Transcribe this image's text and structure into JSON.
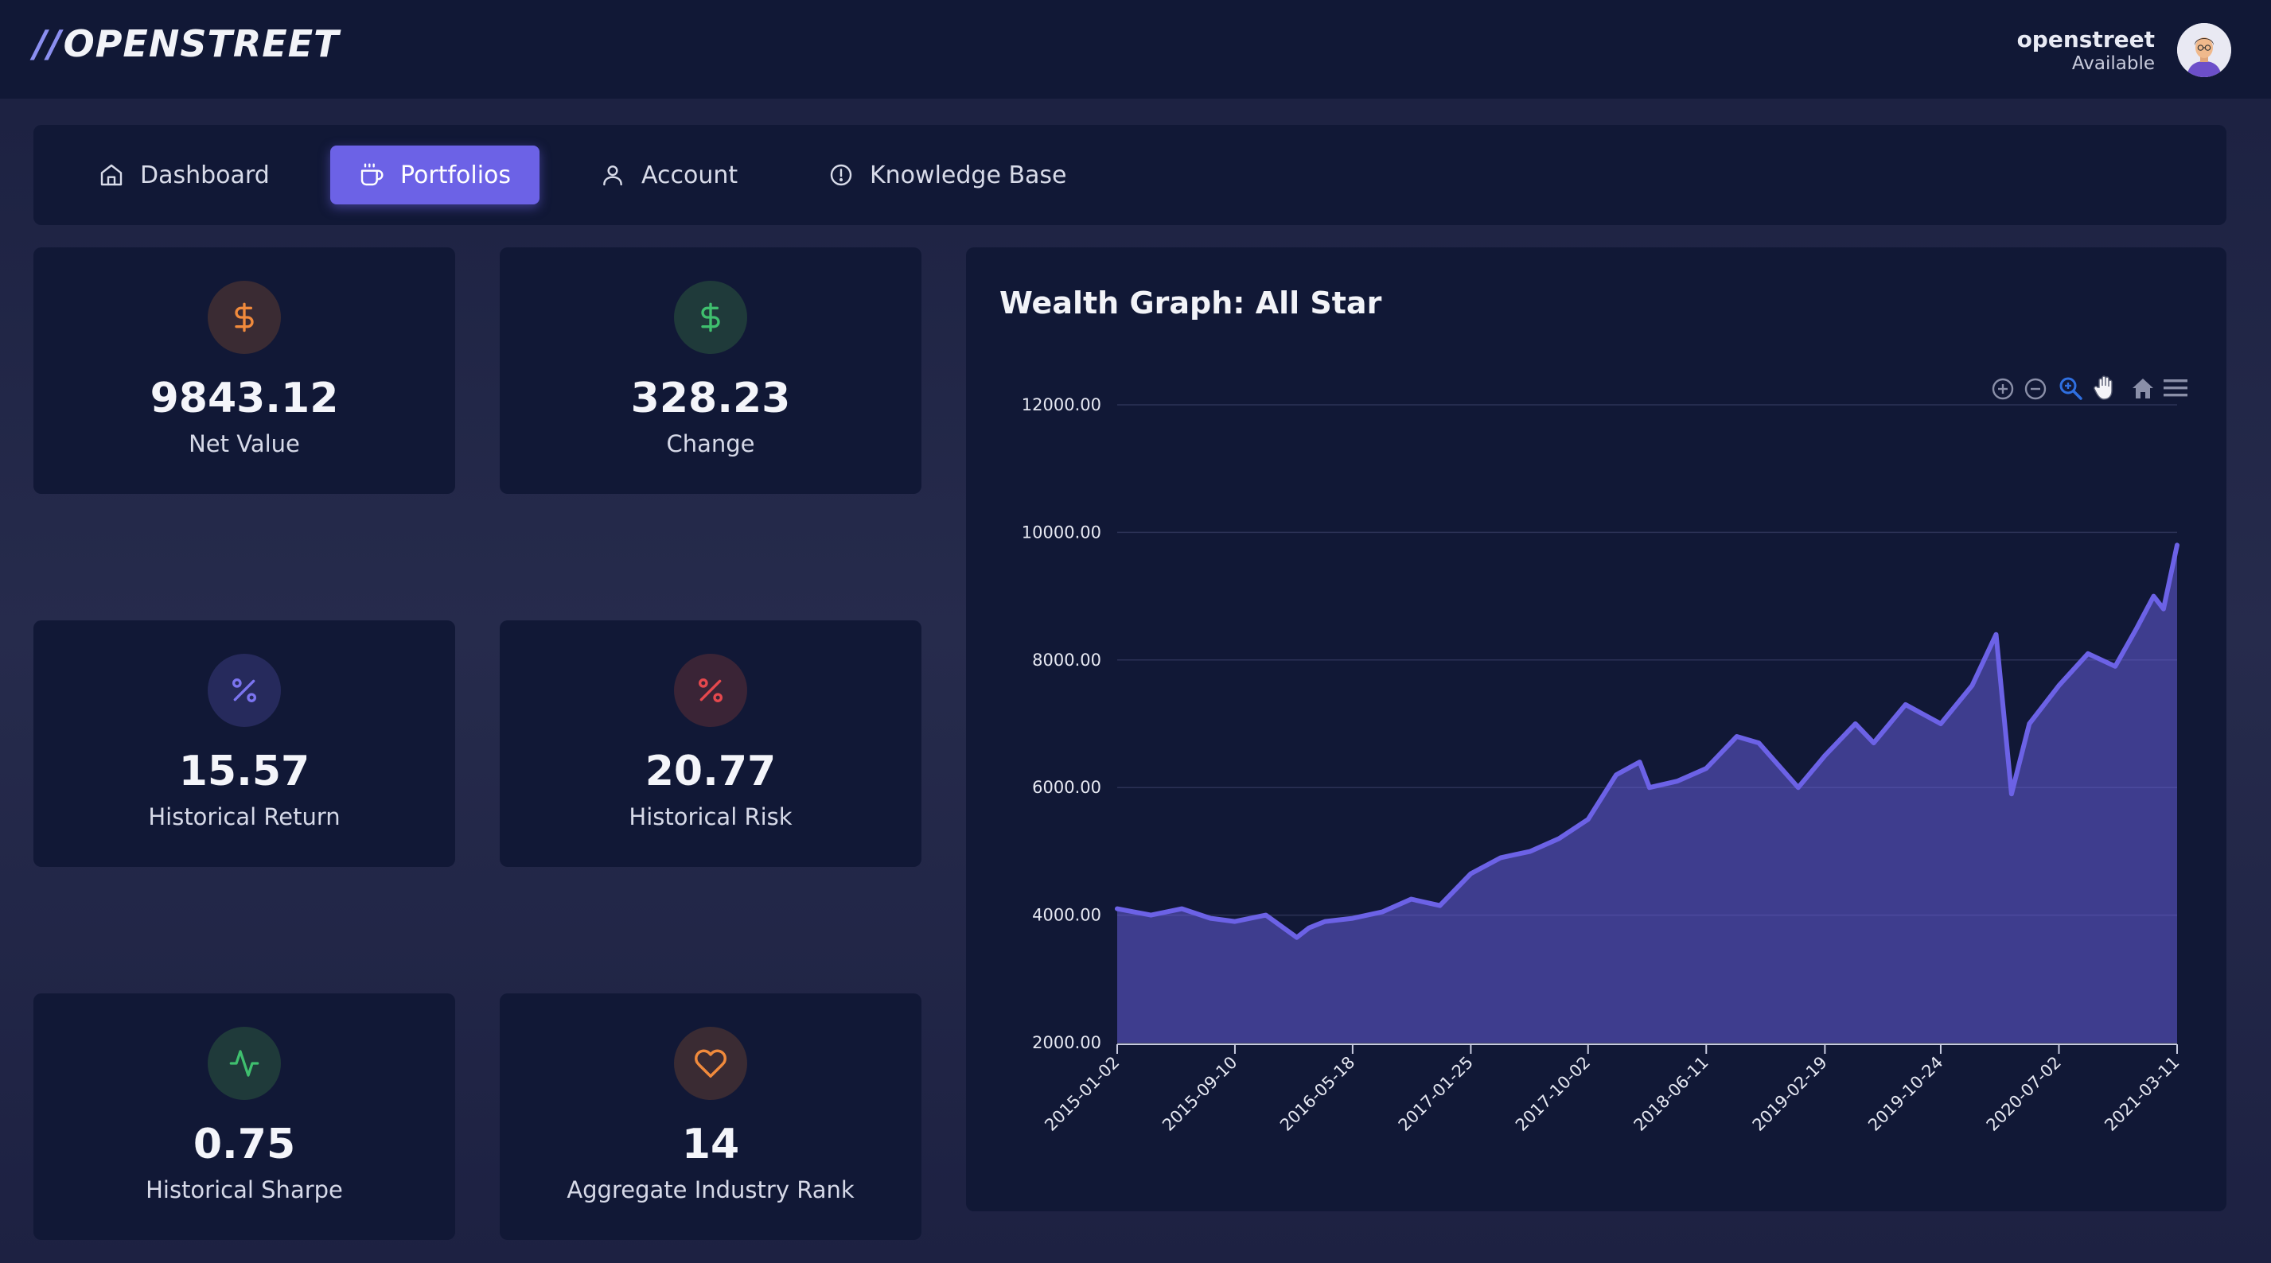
{
  "header": {
    "logo_slashes": "//",
    "logo_text": "OPENSTREET",
    "user_name": "openstreet",
    "user_status": "Available"
  },
  "nav": {
    "items": [
      {
        "label": "Dashboard",
        "icon": "home-icon"
      },
      {
        "label": "Portfolios",
        "icon": "coffee-cup-icon",
        "active": true
      },
      {
        "label": "Account",
        "icon": "user-icon"
      },
      {
        "label": "Knowledge Base",
        "icon": "info-circle-icon"
      }
    ],
    "accent_color": "#6c62e6"
  },
  "stats": [
    {
      "value": "9843.12",
      "label": "Net Value",
      "icon": "dollar-icon",
      "color": "#f08a3c"
    },
    {
      "value": "328.23",
      "label": "Change",
      "icon": "dollar-icon",
      "color": "#3fbf6e"
    },
    {
      "value": "15.57",
      "label": "Historical Return",
      "icon": "percent-icon",
      "color": "#7b74f0"
    },
    {
      "value": "20.77",
      "label": "Historical Risk",
      "icon": "percent-icon",
      "color": "#e5484d"
    },
    {
      "value": "0.75",
      "label": "Historical Sharpe",
      "icon": "activity-icon",
      "color": "#3fbf6e"
    },
    {
      "value": "14",
      "label": "Aggregate Industry Rank",
      "icon": "heart-icon",
      "color": "#f08a3c"
    }
  ],
  "chart": {
    "title": "Wealth Graph: All Star",
    "toolbar": [
      "zoom-in-icon",
      "zoom-out-icon",
      "selection-zoom-icon",
      "pan-hand-icon",
      "reset-home-icon",
      "menu-icon"
    ]
  },
  "chart_data": {
    "type": "area",
    "title": "Wealth Graph: All Star",
    "xlabel": "",
    "ylabel": "",
    "ylim": [
      2000,
      12000
    ],
    "yticks": [
      "2000.00",
      "4000.00",
      "6000.00",
      "8000.00",
      "10000.00",
      "12000.00"
    ],
    "xticks": [
      "2015-01-02",
      "2015-09-10",
      "2016-05-18",
      "2017-01-25",
      "2017-10-02",
      "2018-06-11",
      "2019-02-19",
      "2019-10-24",
      "2020-07-02",
      "2021-03-11"
    ],
    "grid": true,
    "color": "#6c62e6",
    "x": [
      "2015-01-02",
      "2015-03-15",
      "2015-05-20",
      "2015-07-20",
      "2015-09-10",
      "2015-11-15",
      "2016-01-20",
      "2016-02-15",
      "2016-03-20",
      "2016-05-18",
      "2016-07-20",
      "2016-09-20",
      "2016-11-20",
      "2017-01-25",
      "2017-03-30",
      "2017-06-01",
      "2017-08-01",
      "2017-10-02",
      "2017-12-01",
      "2018-01-20",
      "2018-02-10",
      "2018-04-10",
      "2018-06-11",
      "2018-08-15",
      "2018-10-01",
      "2018-12-24",
      "2019-02-19",
      "2019-04-25",
      "2019-06-03",
      "2019-08-10",
      "2019-10-24",
      "2019-12-30",
      "2020-02-19",
      "2020-03-23",
      "2020-04-30",
      "2020-07-02",
      "2020-09-02",
      "2020-10-30",
      "2020-12-15",
      "2021-01-20",
      "2021-02-10",
      "2021-03-11"
    ],
    "values": [
      4100,
      4000,
      4100,
      3950,
      3900,
      4000,
      3650,
      3800,
      3900,
      3950,
      4050,
      4250,
      4150,
      4650,
      4900,
      5000,
      5200,
      5500,
      6200,
      6400,
      6000,
      6100,
      6300,
      6800,
      6700,
      6000,
      6500,
      7000,
      6700,
      7300,
      7000,
      7600,
      8400,
      5900,
      7000,
      7600,
      8100,
      7900,
      8500,
      9000,
      8800,
      9800
    ]
  }
}
